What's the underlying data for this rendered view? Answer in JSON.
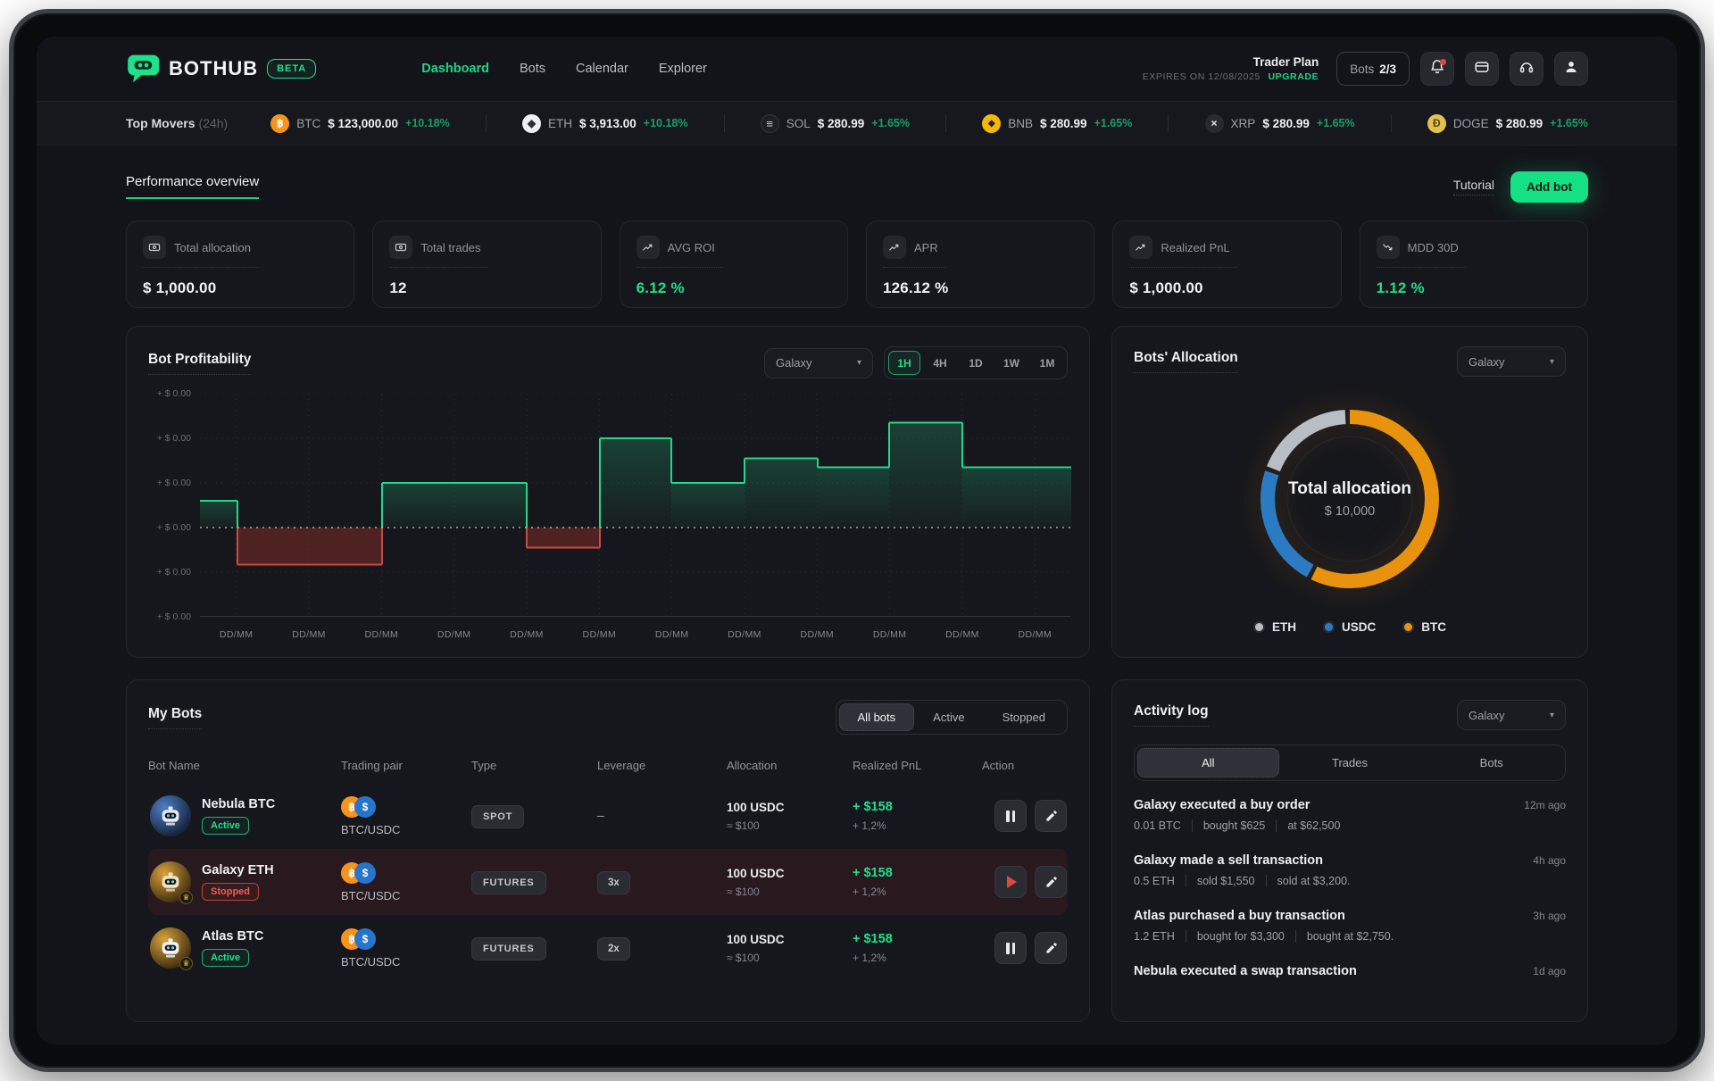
{
  "brand": {
    "name": "BOTHUB",
    "beta": "BETA"
  },
  "nav": {
    "items": [
      {
        "label": "Dashboard"
      },
      {
        "label": "Bots"
      },
      {
        "label": "Calendar"
      },
      {
        "label": "Explorer"
      }
    ],
    "active": "Dashboard"
  },
  "plan": {
    "name": "Trader Plan",
    "expires": "EXPIRES ON 12/08/2025",
    "upgrade": "UPGRADE",
    "bots_label": "Bots",
    "bots_value": "2/3"
  },
  "ticker": {
    "title": "Top Movers",
    "period": "(24h)",
    "items": [
      {
        "symbol": "BTC",
        "glyph": "฿",
        "price": "$ 123,000.00",
        "change": "+10.18%"
      },
      {
        "symbol": "ETH",
        "glyph": "◆",
        "price": "$ 3,913.00",
        "change": "+10.18%"
      },
      {
        "symbol": "SOL",
        "glyph": "≡",
        "price": "$ 280.99",
        "change": "+1.65%"
      },
      {
        "symbol": "BNB",
        "glyph": "◆",
        "price": "$ 280.99",
        "change": "+1.65%"
      },
      {
        "symbol": "XRP",
        "glyph": "×",
        "price": "$ 280.99",
        "change": "+1.65%"
      },
      {
        "symbol": "DOGE",
        "glyph": "Ð",
        "price": "$ 280.99",
        "change": "+1.65%"
      }
    ]
  },
  "page": {
    "section_tab": "Performance overview",
    "tutorial": "Tutorial",
    "add_bot": "Add bot"
  },
  "stats": {
    "cards": [
      {
        "label": "Total allocation",
        "value": "$ 1,000.00",
        "icon": "banknote-icon",
        "accent": false
      },
      {
        "label": "Total trades",
        "value": "12",
        "icon": "banknote-icon",
        "accent": false
      },
      {
        "label": "AVG ROI",
        "value": "6.12 %",
        "icon": "trend-up-icon",
        "accent": true
      },
      {
        "label": "APR",
        "value": "126.12 %",
        "icon": "trend-up-icon",
        "accent": false
      },
      {
        "label": "Realized PnL",
        "value": "$ 1,000.00",
        "icon": "trend-up-icon",
        "accent": false
      },
      {
        "label": "MDD 30D",
        "value": "1.12 %",
        "icon": "trend-down-icon",
        "accent": true
      }
    ]
  },
  "profitability": {
    "title": "Bot Profitability",
    "filter_value": "Galaxy",
    "ranges": [
      "1H",
      "4H",
      "1D",
      "1W",
      "1M"
    ],
    "active_range": "1H"
  },
  "allocation": {
    "title": "Bots' Allocation",
    "filter_value": "Galaxy",
    "center_title": "Total allocation",
    "center_value": "$ 10,000",
    "legend": [
      {
        "label": "ETH",
        "color": "#b9bdc6"
      },
      {
        "label": "USDC",
        "color": "#2b7bc3"
      },
      {
        "label": "BTC",
        "color": "#e8920e"
      }
    ]
  },
  "chart_data": [
    {
      "id": "bot-profitability",
      "type": "step-area",
      "title": "Bot Profitability",
      "x_labels": [
        "DD/MM",
        "DD/MM",
        "DD/MM",
        "DD/MM",
        "DD/MM",
        "DD/MM",
        "DD/MM",
        "DD/MM",
        "DD/MM",
        "DD/MM",
        "DD/MM",
        "DD/MM"
      ],
      "y_tick_label": "+ $ 0.00",
      "y_tick_count": 6,
      "ylim": [
        -2,
        3
      ],
      "baseline": 0,
      "grid": true,
      "segments": [
        {
          "width_pct": 4.3,
          "value": 0.6
        },
        {
          "width_pct": 16.6,
          "value": -0.83
        },
        {
          "width_pct": 16.6,
          "value": 1.0
        },
        {
          "width_pct": 8.4,
          "value": -0.45
        },
        {
          "width_pct": 8.2,
          "value": 2.0
        },
        {
          "width_pct": 8.4,
          "value": 1.0
        },
        {
          "width_pct": 8.4,
          "value": 1.55
        },
        {
          "width_pct": 8.2,
          "value": 1.35
        },
        {
          "width_pct": 8.4,
          "value": 2.35
        },
        {
          "width_pct": 12.5,
          "value": 1.35
        }
      ],
      "positive_color": "#24d78c",
      "negative_color": "#cb4a42"
    },
    {
      "id": "bots-allocation",
      "type": "pie",
      "title": "Bots' Allocation",
      "center_label": "Total allocation",
      "center_value": "$ 10,000",
      "slices": [
        {
          "label": "BTC",
          "value": 58,
          "color": "#e8920e"
        },
        {
          "label": "USDC",
          "value": 23,
          "color": "#2b7bc3"
        },
        {
          "label": "ETH",
          "value": 19,
          "color": "#b9bdc6"
        }
      ],
      "legend_position": "bottom"
    }
  ],
  "my_bots": {
    "title": "My Bots",
    "tabs": [
      "All bots",
      "Active",
      "Stopped"
    ],
    "active_tab": "All bots",
    "columns": [
      "Bot Name",
      "Trading pair",
      "Type",
      "Leverage",
      "Allocation",
      "Realized PnL",
      "Action"
    ],
    "rows": [
      {
        "name": "Nebula BTC",
        "status": "Active",
        "pair": "BTC/USDC",
        "type": "SPOT",
        "leverage": "–",
        "allocation": "100 USDC",
        "allocation_approx": "≈ $100",
        "pnl": "+ $158",
        "pnl_pct": "+ 1,2%",
        "actions": [
          "pause",
          "edit"
        ]
      },
      {
        "name": "Galaxy ETH",
        "status": "Stopped",
        "pair": "BTC/USDC",
        "type": "FUTURES",
        "leverage": "3x",
        "allocation": "100 USDC",
        "allocation_approx": "≈ $100",
        "pnl": "+ $158",
        "pnl_pct": "+ 1,2%",
        "actions": [
          "play",
          "edit"
        ]
      },
      {
        "name": "Atlas BTC",
        "status": "Active",
        "pair": "BTC/USDC",
        "type": "FUTURES",
        "leverage": "2x",
        "allocation": "100 USDC",
        "allocation_approx": "≈ $100",
        "pnl": "+ $158",
        "pnl_pct": "+ 1,2%",
        "actions": [
          "pause",
          "edit"
        ]
      }
    ]
  },
  "activity": {
    "title": "Activity log",
    "filter_value": "Galaxy",
    "tabs": [
      "All",
      "Trades",
      "Bots"
    ],
    "active_tab": "All",
    "entries": [
      {
        "title": "Galaxy executed a buy order",
        "time": "12m ago",
        "details": [
          "0.01 BTC",
          "bought $625",
          "at $62,500"
        ]
      },
      {
        "title": "Galaxy made a sell transaction",
        "time": "4h ago",
        "details": [
          "0.5 ETH",
          "sold $1,550",
          "sold at $3,200."
        ]
      },
      {
        "title": "Atlas purchased a buy transaction",
        "time": "3h ago",
        "details": [
          "1.2 ETH",
          "bought for $3,300",
          "bought at $2,750."
        ]
      },
      {
        "title": "Nebula executed a swap transaction",
        "time": "1d ago",
        "details": []
      }
    ]
  },
  "colors": {
    "accent": "#1fe08b",
    "positive": "#16a06c",
    "negative": "#d24b43",
    "btc": "#f7931a",
    "usdc": "#2775ca"
  }
}
